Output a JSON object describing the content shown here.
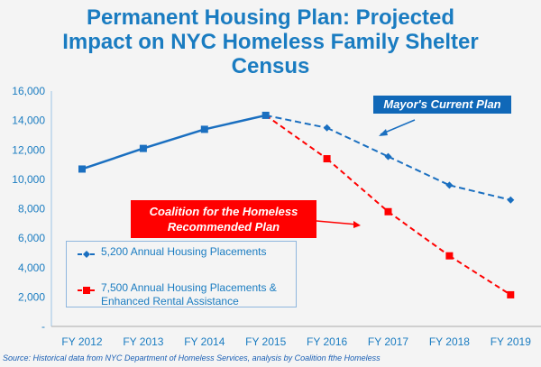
{
  "title": [
    "Permanent Housing Plan: Projected",
    "Impact on NYC Homeless Family Shelter",
    "Census"
  ],
  "source": "Source:  Historical data from NYC Department of Homeless Services, analysis by Coalition  fthe Homeless",
  "callouts": {
    "mayor": "Mayor's Current Plan",
    "coalition_line1": "Coalition for the Homeless",
    "coalition_line2": "Recommended Plan"
  },
  "legend": {
    "s1": "5,200 Annual Housing Placements",
    "s2_line1": "7,500 Annual Housing Placements &",
    "s2_line2": "Enhanced Rental Assistance"
  },
  "chart_data": {
    "type": "line",
    "title": "Permanent Housing Plan: Projected Impact on NYC Homeless Family Shelter Census",
    "categories": [
      "FY 2012",
      "FY 2013",
      "FY 2014",
      "FY 2015",
      "FY 2016",
      "FY 2017",
      "FY 2018",
      "FY 2019"
    ],
    "ylim": [
      0,
      16000
    ],
    "yticks": [
      0,
      2000,
      4000,
      6000,
      8000,
      10000,
      12000,
      14000,
      16000
    ],
    "ytick_labels": [
      "-",
      "2,000",
      "4,000",
      "6,000",
      "8,000",
      "10,000",
      "12,000",
      "14,000",
      "16,000"
    ],
    "legend_position": "bottom-left",
    "series": [
      {
        "name": "5,200 Annual Housing Placements",
        "color": "#1a6fc0",
        "values": [
          10700,
          12100,
          13400,
          14350,
          13500,
          11550,
          9600,
          8600
        ],
        "dashed_from_index": 3
      },
      {
        "name": "7,500 Annual Housing Placements & Enhanced Rental Assistance",
        "color": "#ff0000",
        "values": [
          null,
          null,
          null,
          14350,
          11400,
          7800,
          4800,
          2150
        ]
      }
    ]
  }
}
